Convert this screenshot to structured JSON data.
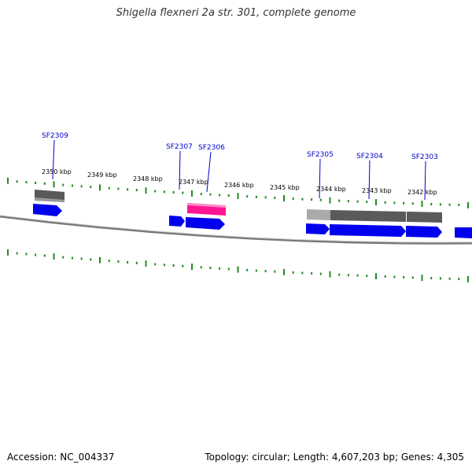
{
  "title": "Shigella flexneri 2a str. 301, complete genome",
  "footer": {
    "accession": "Accession: NC_004337",
    "summary": "Topology: circular; Length: 4,607,203 bp; Genes: 4,305"
  },
  "colors": {
    "tick": "#228b22",
    "gene_forward": "#0000ee",
    "gene_dark": "#555555",
    "gene_light": "#aaaaaa",
    "gene_pink": "#ff1493",
    "backbone": "#666666",
    "label": "#0000cc"
  },
  "tick_labels": [
    "2350 kbp",
    "2349 kbp",
    "2348 kbp",
    "2347 kbp",
    "2346 kbp",
    "2345 kbp",
    "2344 kbp",
    "2343 kbp",
    "2342 kbp"
  ],
  "gene_labels": [
    "SF2309",
    "SF2307",
    "SF2306",
    "SF2305",
    "SF2304",
    "SF2303"
  ]
}
